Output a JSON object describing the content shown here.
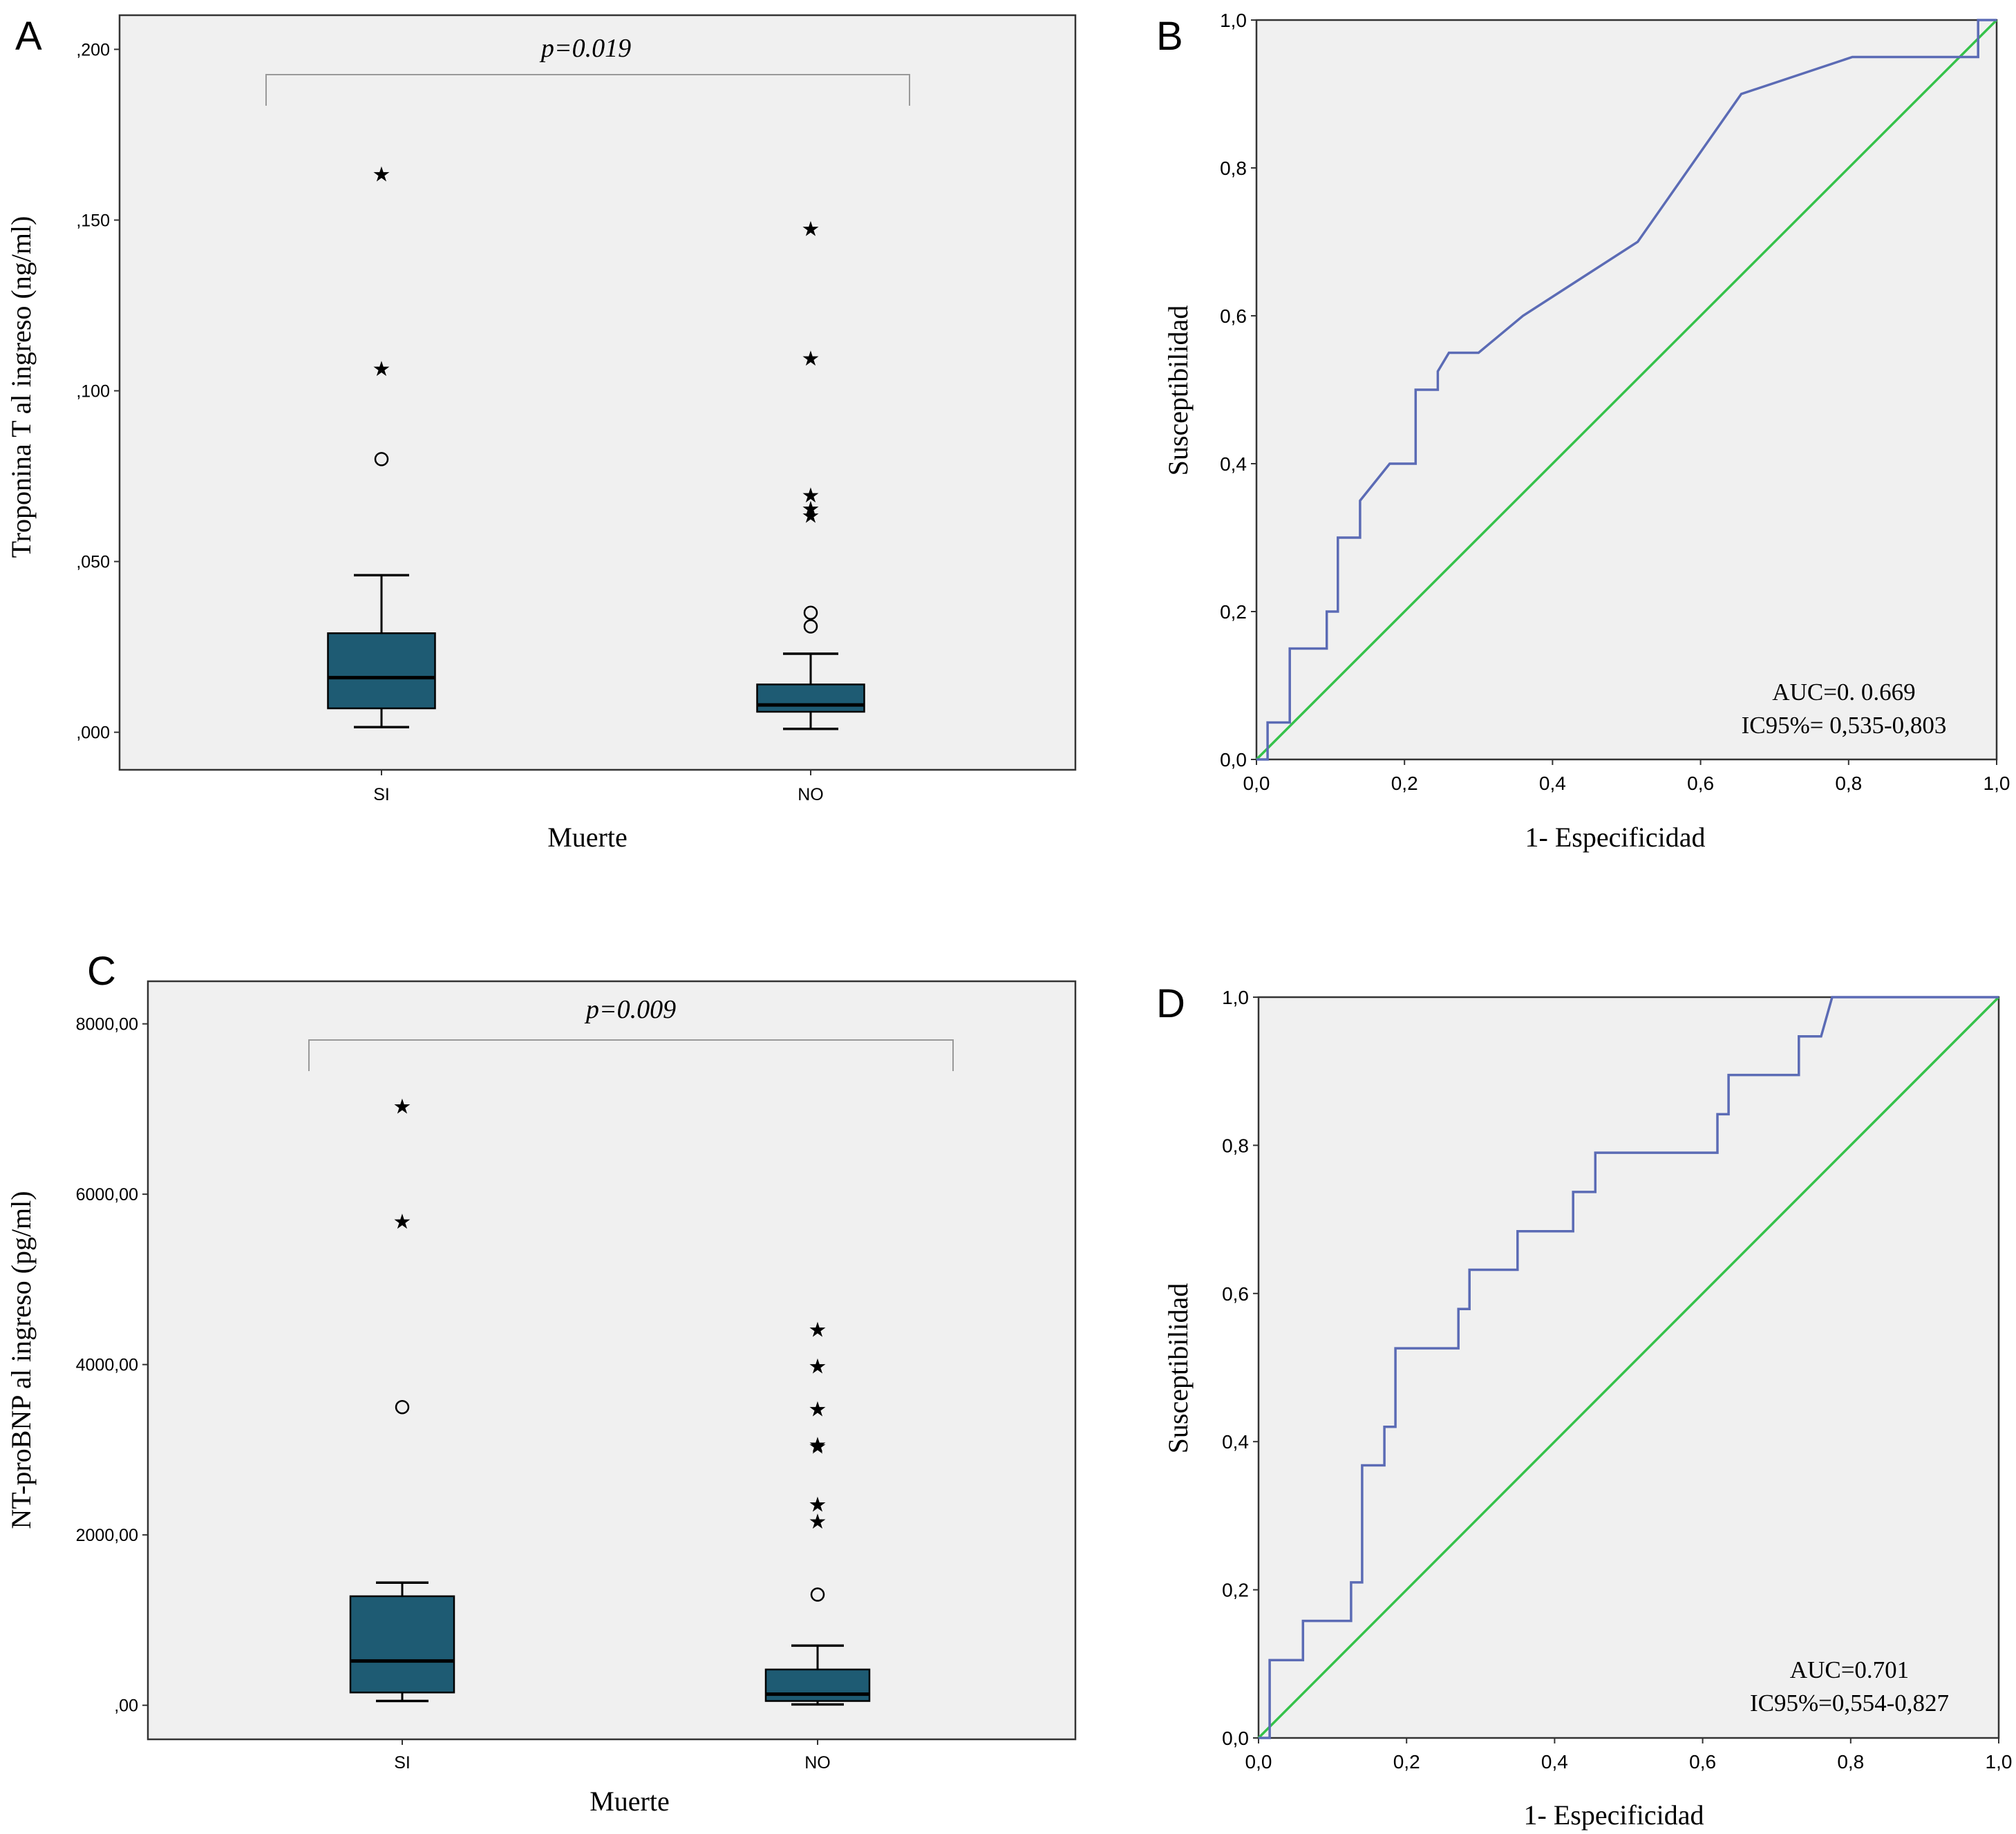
{
  "chart_data": [
    {
      "panel": "A",
      "type": "box",
      "xlabel": "Muerte",
      "ylabel": "Troponina T al ingreso (ng/ml)",
      "ylim": [
        -0.011,
        0.21
      ],
      "yticks": [
        0,
        0.05,
        0.1,
        0.15,
        0.2
      ],
      "ytick_labels": [
        ",000",
        ",050",
        ",100",
        ",150",
        ",200"
      ],
      "categories": [
        "SI",
        "NO"
      ],
      "box_color": "#1e5b73",
      "boxes": [
        {
          "whisker_low": 0.0015,
          "q1": 0.007,
          "median": 0.016,
          "q3": 0.029,
          "whisker_high": 0.046,
          "outliers_circle": [
            0.08
          ],
          "outliers_star": [
            0.107,
            0.164
          ]
        },
        {
          "whisker_low": 0.001,
          "q1": 0.006,
          "median": 0.008,
          "q3": 0.014,
          "whisker_high": 0.023,
          "outliers_circle": [
            0.031,
            0.035
          ],
          "outliers_star": [
            0.064,
            0.066,
            0.07,
            0.11,
            0.148
          ]
        }
      ],
      "annotation": "p=0.019"
    },
    {
      "panel": "B",
      "type": "line",
      "xlabel": "1- Especificidad",
      "ylabel": "Susceptibilidad",
      "xlim": [
        0,
        1
      ],
      "ylim": [
        0,
        1
      ],
      "ticks": [
        0,
        0.2,
        0.4,
        0.6,
        0.8,
        1.0
      ],
      "tick_labels": [
        "0,0",
        "0,2",
        "0,4",
        "0,6",
        "0,8",
        "1,0"
      ],
      "series": [
        {
          "name": "ROC",
          "color": "#5b6bb5",
          "x": [
            0,
            0.015,
            0.015,
            0.045,
            0.045,
            0.095,
            0.095,
            0.11,
            0.11,
            0.14,
            0.14,
            0.18,
            0.18,
            0.215,
            0.215,
            0.245,
            0.245,
            0.26,
            0.26,
            0.3,
            0.36,
            0.515,
            0.655,
            0.805,
            0.975,
            0.975,
            1.0
          ],
          "y": [
            0,
            0,
            0.05,
            0.05,
            0.15,
            0.15,
            0.2,
            0.2,
            0.3,
            0.3,
            0.35,
            0.4,
            0.4,
            0.4,
            0.5,
            0.5,
            0.525,
            0.55,
            0.55,
            0.55,
            0.6,
            0.7,
            0.9,
            0.95,
            0.95,
            1.0,
            1.0
          ]
        },
        {
          "name": "Reference",
          "color": "#35c24a",
          "x": [
            0,
            1
          ],
          "y": [
            0,
            1
          ]
        }
      ],
      "annotations": [
        "AUC=0. 0.669",
        "IC95%= 0,535-0,803"
      ]
    },
    {
      "panel": "C",
      "type": "box",
      "xlabel": "Muerte",
      "ylabel": "NT-proBNP al ingreso (pg/ml)",
      "ylim": [
        -400,
        8500
      ],
      "yticks": [
        0,
        2000,
        4000,
        6000,
        8000
      ],
      "ytick_labels": [
        ",00",
        "2000,00",
        "4000,00",
        "6000,00",
        "8000,00"
      ],
      "categories": [
        "SI",
        "NO"
      ],
      "box_color": "#1e5b73",
      "boxes": [
        {
          "whisker_low": 50,
          "q1": 150,
          "median": 520,
          "q3": 1280,
          "whisker_high": 1440,
          "outliers_circle": [
            3500
          ],
          "outliers_star": [
            5700,
            7050
          ]
        },
        {
          "whisker_low": 10,
          "q1": 50,
          "median": 130,
          "q3": 420,
          "whisker_high": 700,
          "outliers_circle": [
            1300
          ],
          "outliers_star": [
            2180,
            2380,
            3060,
            3080,
            3500,
            4000,
            4430
          ]
        }
      ],
      "annotation": "p=0.009"
    },
    {
      "panel": "D",
      "type": "line",
      "xlabel": "1- Especificidad",
      "ylabel": "Susceptibilidad",
      "xlim": [
        0,
        1
      ],
      "ylim": [
        0,
        1
      ],
      "ticks": [
        0,
        0.2,
        0.4,
        0.6,
        0.8,
        1.0
      ],
      "tick_labels": [
        "0,0",
        "0,2",
        "0,4",
        "0,6",
        "0,8",
        "1,0"
      ],
      "series": [
        {
          "name": "ROC",
          "color": "#5b6bb5",
          "x": [
            0,
            0.015,
            0.015,
            0.06,
            0.06,
            0.125,
            0.125,
            0.14,
            0.14,
            0.17,
            0.17,
            0.185,
            0.185,
            0.27,
            0.27,
            0.285,
            0.285,
            0.35,
            0.35,
            0.425,
            0.425,
            0.455,
            0.455,
            0.62,
            0.62,
            0.635,
            0.635,
            0.73,
            0.73,
            0.76,
            0.775,
            1.0
          ],
          "y": [
            0,
            0,
            0.105,
            0.105,
            0.158,
            0.158,
            0.21,
            0.21,
            0.368,
            0.368,
            0.42,
            0.42,
            0.526,
            0.526,
            0.579,
            0.579,
            0.632,
            0.632,
            0.684,
            0.684,
            0.737,
            0.737,
            0.79,
            0.79,
            0.842,
            0.842,
            0.895,
            0.895,
            0.947,
            0.947,
            1.0,
            1.0
          ]
        },
        {
          "name": "Reference",
          "color": "#35c24a",
          "x": [
            0,
            1
          ],
          "y": [
            0,
            1
          ]
        }
      ],
      "annotations": [
        "AUC=0.701",
        "IC95%=0,554-0,827"
      ]
    }
  ]
}
